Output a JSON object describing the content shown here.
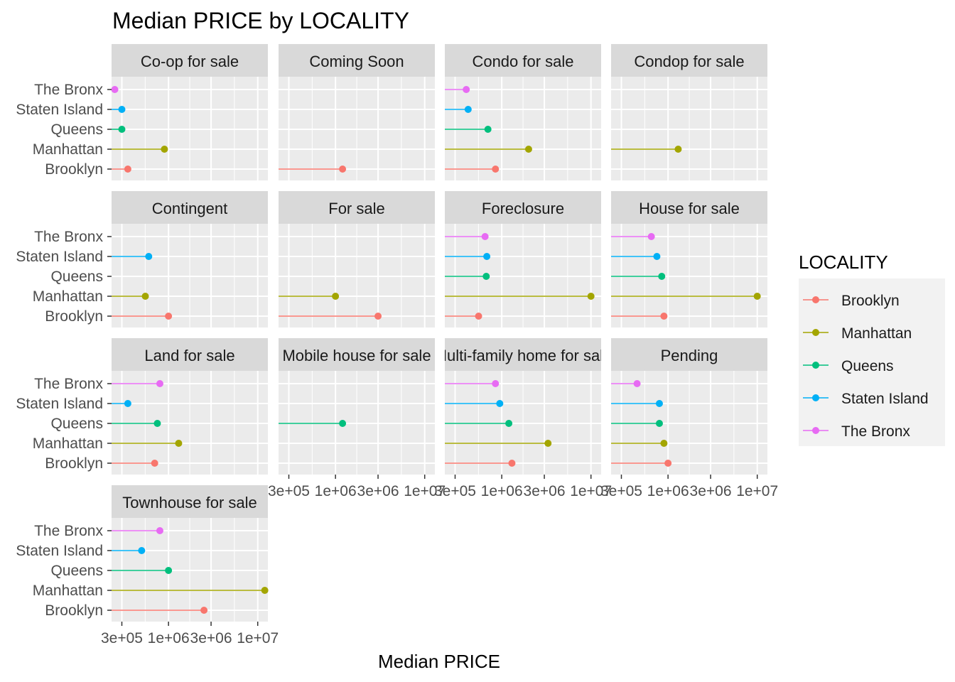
{
  "chart_data": {
    "type": "scatter",
    "title": "Median PRICE by LOCALITY",
    "xlabel": "Median PRICE",
    "ylabel": "",
    "x_scale": "log10",
    "xlim": [
      230000,
      13000000
    ],
    "x_ticks": [
      300000,
      1000000,
      3000000,
      10000000
    ],
    "x_tick_labels": [
      "3e+05",
      "1e+06",
      "3e+06",
      "1e+07"
    ],
    "localities": [
      "The Bronx",
      "Staten Island",
      "Queens",
      "Manhattan",
      "Brooklyn"
    ],
    "legend": {
      "title": "LOCALITY",
      "placement": "right",
      "entries": [
        "Brooklyn",
        "Manhattan",
        "Queens",
        "Staten Island",
        "The Bronx"
      ]
    },
    "colors": {
      "Brooklyn": "#F8766D",
      "Manhattan": "#A3A500",
      "Queens": "#00BF7D",
      "Staten Island": "#00B0F6",
      "The Bronx": "#E76BF3"
    },
    "panels": [
      {
        "facet": "Co-op for sale",
        "points": {
          "The Bronx": 250000,
          "Staten Island": 300000,
          "Queens": 300000,
          "Manhattan": 900000,
          "Brooklyn": 350000
        }
      },
      {
        "facet": "Coming Soon",
        "points": {
          "Brooklyn": 1200000
        }
      },
      {
        "facet": "Condo for sale",
        "points": {
          "The Bronx": 400000,
          "Staten Island": 420000,
          "Queens": 700000,
          "Manhattan": 2000000,
          "Brooklyn": 850000
        }
      },
      {
        "facet": "Condop for sale",
        "points": {
          "Manhattan": 1300000
        }
      },
      {
        "facet": "Contingent",
        "points": {
          "Staten Island": 600000,
          "Manhattan": 550000,
          "Brooklyn": 1000000
        }
      },
      {
        "facet": "For sale",
        "points": {
          "Manhattan": 1000000,
          "Brooklyn": 3000000
        }
      },
      {
        "facet": "Foreclosure",
        "points": {
          "The Bronx": 650000,
          "Staten Island": 680000,
          "Queens": 670000,
          "Manhattan": 10000000,
          "Brooklyn": 550000
        }
      },
      {
        "facet": "House for sale",
        "points": {
          "The Bronx": 650000,
          "Staten Island": 750000,
          "Queens": 850000,
          "Manhattan": 10000000,
          "Brooklyn": 900000
        }
      },
      {
        "facet": "Land for sale",
        "points": {
          "The Bronx": 800000,
          "Staten Island": 350000,
          "Queens": 750000,
          "Manhattan": 1300000,
          "Brooklyn": 700000
        }
      },
      {
        "facet": "Mobile house for sale",
        "points": {
          "Queens": 1200000
        }
      },
      {
        "facet": "Multi-family home for sale",
        "points": {
          "The Bronx": 850000,
          "Staten Island": 950000,
          "Queens": 1200000,
          "Manhattan": 3300000,
          "Brooklyn": 1300000
        }
      },
      {
        "facet": "Pending",
        "points": {
          "The Bronx": 450000,
          "Staten Island": 800000,
          "Queens": 800000,
          "Manhattan": 900000,
          "Brooklyn": 1000000
        }
      },
      {
        "facet": "Townhouse for sale",
        "points": {
          "The Bronx": 800000,
          "Staten Island": 500000,
          "Queens": 1000000,
          "Manhattan": 12000000,
          "Brooklyn": 2500000
        }
      }
    ]
  }
}
